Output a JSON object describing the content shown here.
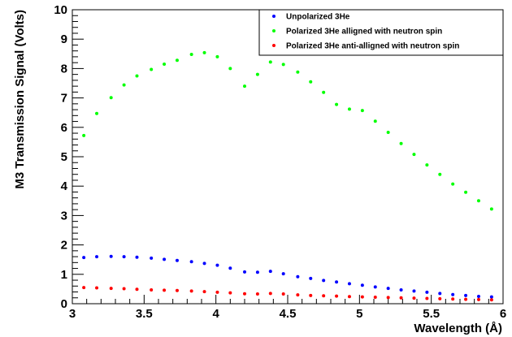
{
  "chart_data": {
    "type": "scatter",
    "title": "",
    "xlabel": "Wavelength (Å)",
    "ylabel": "M3 Transmission Signal (Volts)",
    "xlim": [
      3,
      6
    ],
    "ylim": [
      0,
      10
    ],
    "x_ticks": [
      "3",
      "3.5",
      "4",
      "4.5",
      "5",
      "5.5",
      "6"
    ],
    "y_ticks": [
      "0",
      "1",
      "2",
      "3",
      "4",
      "5",
      "6",
      "7",
      "8",
      "9",
      "10"
    ],
    "grid": false,
    "legend_position": "top-right",
    "series": [
      {
        "name": "Unpolarized 3He",
        "color": "#0000ff",
        "x": [
          3.08,
          3.17,
          3.27,
          3.36,
          3.45,
          3.55,
          3.64,
          3.73,
          3.83,
          3.92,
          4.01,
          4.1,
          4.2,
          4.29,
          4.38,
          4.47,
          4.57,
          4.66,
          4.75,
          4.84,
          4.93,
          5.02,
          5.11,
          5.2,
          5.29,
          5.38,
          5.47,
          5.56,
          5.65,
          5.74,
          5.83,
          5.92
        ],
        "y": [
          1.57,
          1.6,
          1.61,
          1.6,
          1.58,
          1.55,
          1.51,
          1.47,
          1.43,
          1.37,
          1.31,
          1.21,
          1.08,
          1.07,
          1.1,
          1.02,
          0.92,
          0.86,
          0.79,
          0.74,
          0.68,
          0.63,
          0.57,
          0.52,
          0.47,
          0.43,
          0.39,
          0.35,
          0.31,
          0.28,
          0.25,
          0.23
        ]
      },
      {
        "name": "Polarized 3He alligned with neutron spin",
        "color": "#00ff00",
        "x": [
          3.08,
          3.17,
          3.27,
          3.36,
          3.45,
          3.55,
          3.64,
          3.73,
          3.83,
          3.92,
          4.01,
          4.1,
          4.2,
          4.29,
          4.38,
          4.47,
          4.57,
          4.66,
          4.75,
          4.84,
          4.93,
          5.02,
          5.11,
          5.2,
          5.29,
          5.38,
          5.47,
          5.56,
          5.65,
          5.74,
          5.83,
          5.92
        ],
        "y": [
          5.72,
          6.47,
          7.01,
          7.44,
          7.75,
          7.97,
          8.15,
          8.28,
          8.48,
          8.54,
          8.4,
          8.0,
          7.4,
          7.8,
          8.22,
          8.14,
          7.88,
          7.55,
          7.19,
          6.78,
          6.62,
          6.57,
          6.21,
          5.83,
          5.45,
          5.08,
          4.72,
          4.4,
          4.07,
          3.79,
          3.5,
          3.22
        ]
      },
      {
        "name": "Polarized 3He anti-alligned with neutron spin",
        "color": "#ff0000",
        "x": [
          3.08,
          3.17,
          3.27,
          3.36,
          3.45,
          3.55,
          3.64,
          3.73,
          3.83,
          3.92,
          4.01,
          4.1,
          4.2,
          4.29,
          4.38,
          4.47,
          4.57,
          4.66,
          4.75,
          4.84,
          4.93,
          5.02,
          5.11,
          5.2,
          5.29,
          5.38,
          5.47,
          5.56,
          5.65,
          5.74,
          5.83,
          5.92
        ],
        "y": [
          0.55,
          0.54,
          0.52,
          0.51,
          0.49,
          0.47,
          0.46,
          0.45,
          0.43,
          0.41,
          0.39,
          0.37,
          0.34,
          0.33,
          0.35,
          0.33,
          0.3,
          0.28,
          0.27,
          0.26,
          0.24,
          0.23,
          0.22,
          0.21,
          0.2,
          0.19,
          0.18,
          0.17,
          0.16,
          0.15,
          0.14,
          0.13
        ]
      }
    ]
  }
}
